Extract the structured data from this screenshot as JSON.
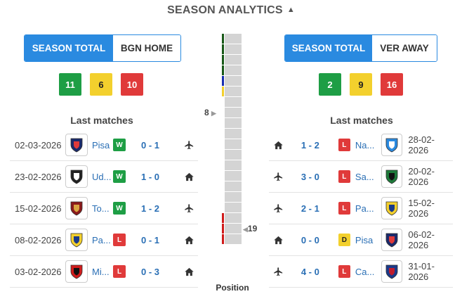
{
  "header": {
    "title": "SEASON ANALYTICS",
    "chevron_icon": "chevron-up-icon"
  },
  "home": {
    "toggle": {
      "season_total": "SEASON TOTAL",
      "split": "BGN HOME"
    },
    "stats": {
      "wins": "11",
      "draws": "6",
      "losses": "10"
    },
    "last_matches_title": "Last matches",
    "matches": [
      {
        "date": "02-03-2026",
        "team": "Pisa",
        "result": "W",
        "score": "0 - 1",
        "venue": "away",
        "crest_colors": [
          "#1a2a6c",
          "#e03a3a"
        ]
      },
      {
        "date": "23-02-2026",
        "team": "Ud...",
        "result": "W",
        "score": "1 - 0",
        "venue": "home",
        "crest_colors": [
          "#222222",
          "#ffffff"
        ]
      },
      {
        "date": "15-02-2026",
        "team": "To...",
        "result": "W",
        "score": "1 - 2",
        "venue": "away",
        "crest_colors": [
          "#8b1a1a",
          "#d9a441"
        ]
      },
      {
        "date": "08-02-2026",
        "team": "Pa...",
        "result": "L",
        "score": "0 - 1",
        "venue": "home",
        "crest_colors": [
          "#f3d02d",
          "#1a3a8a"
        ]
      },
      {
        "date": "03-02-2026",
        "team": "Mi...",
        "result": "L",
        "score": "0 - 3",
        "venue": "home",
        "crest_colors": [
          "#d01c1c",
          "#111111"
        ]
      }
    ]
  },
  "away": {
    "toggle": {
      "season_total": "SEASON TOTAL",
      "split": "VER AWAY"
    },
    "stats": {
      "wins": "2",
      "draws": "9",
      "losses": "16"
    },
    "last_matches_title": "Last matches",
    "matches": [
      {
        "date": "28-02-2026",
        "team": "Na...",
        "result": "L",
        "score": "1 - 2",
        "venue": "home",
        "crest_colors": [
          "#2a8ae0",
          "#ffffff"
        ]
      },
      {
        "date": "20-02-2026",
        "team": "Sa...",
        "result": "L",
        "score": "3 - 0",
        "venue": "away",
        "crest_colors": [
          "#1e7a3a",
          "#111111"
        ]
      },
      {
        "date": "15-02-2026",
        "team": "Pa...",
        "result": "L",
        "score": "2 - 1",
        "venue": "away",
        "crest_colors": [
          "#f3d02d",
          "#1a3a8a"
        ]
      },
      {
        "date": "06-02-2026",
        "team": "Pisa",
        "result": "D",
        "score": "0 - 0",
        "venue": "home",
        "crest_colors": [
          "#1a2a6c",
          "#e03a3a"
        ]
      },
      {
        "date": "31-01-2026",
        "team": "Ca...",
        "result": "L",
        "score": "4 - 0",
        "venue": "away",
        "crest_colors": [
          "#1a3a8a",
          "#c01c2c"
        ]
      }
    ]
  },
  "position": {
    "label": "Position",
    "total_positions": 20,
    "home_position": "8",
    "away_position": "19",
    "zone_colors": {
      "champions": "#1a5a1a",
      "europa": "#1a2fb0",
      "conference": "#f3d02d",
      "relegation": "#d01c1c"
    },
    "zones": [
      "champions",
      "champions",
      "champions",
      "champions",
      "europa",
      "conference",
      "",
      "",
      "",
      "",
      "",
      "",
      "",
      "",
      "",
      "",
      "",
      "relegation",
      "relegation",
      "relegation"
    ]
  },
  "colors": {
    "accent": "#2a8ae0",
    "win": "#1e9e45",
    "draw": "#f3d02d",
    "loss": "#e03a3a"
  }
}
